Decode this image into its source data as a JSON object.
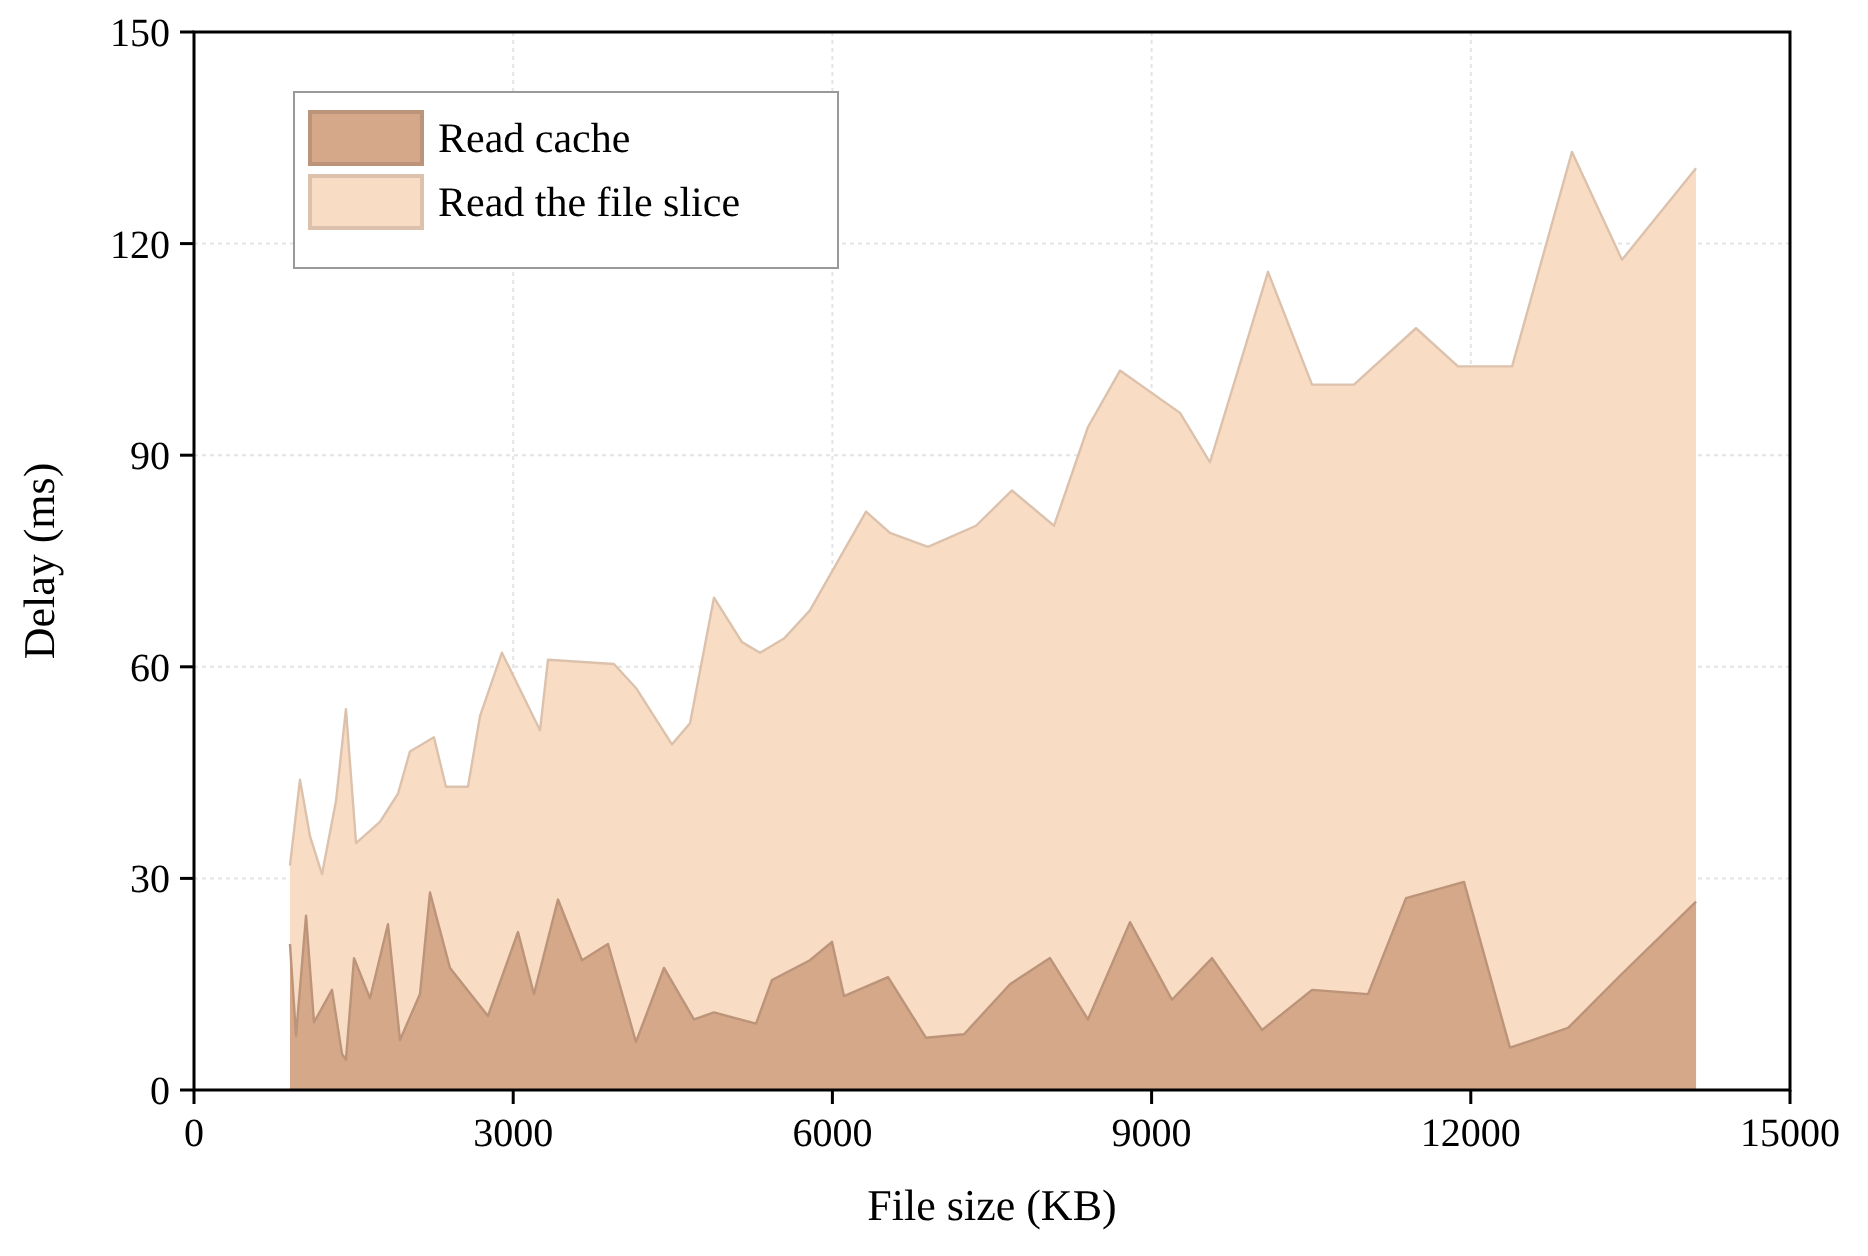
{
  "chart_data": {
    "type": "area",
    "xlabel": "File size (KB)",
    "ylabel": "Delay (ms)",
    "xlim": [
      0,
      15000
    ],
    "xticks": [
      0,
      3000,
      6000,
      9000,
      12000,
      15000
    ],
    "ylim": [
      0,
      150
    ],
    "yticks": [
      0,
      30,
      60,
      90,
      120,
      150
    ],
    "grid": true,
    "legend": "top left",
    "series": [
      {
        "name": "Read the file slice",
        "color": "#f9dcc4",
        "x": [
          902,
          996,
          1090,
          1203,
          1335,
          1428,
          1523,
          1748,
          1917,
          2030,
          2255,
          2368,
          2575,
          2688,
          2894,
          3252,
          3327,
          3947,
          4154,
          4492,
          4662,
          4887,
          5150,
          5320,
          5545,
          5789,
          6316,
          6541,
          6898,
          7350,
          7688,
          8083,
          8402,
          8703,
          9267,
          9549,
          10094,
          10508,
          10902,
          11485,
          11880,
          12388,
          12951,
          13421,
          14117
        ],
        "values": [
          31.8,
          44,
          36,
          30.6,
          41,
          54,
          35,
          38,
          42,
          48,
          50,
          43,
          43,
          53,
          62,
          51,
          61,
          60.4,
          57,
          49,
          52,
          69.8,
          63.5,
          62,
          64,
          68,
          82,
          79,
          77,
          80,
          85,
          80,
          94,
          102,
          96,
          89,
          116,
          100,
          100,
          108,
          102.6,
          102.6,
          133,
          117.7,
          130.7
        ]
      },
      {
        "name": "Read cache",
        "color": "#d4a889",
        "x": [
          902,
          959,
          1053,
          1128,
          1297,
          1391,
          1428,
          1504,
          1654,
          1823,
          1936,
          2124,
          2218,
          2406,
          2763,
          3045,
          3195,
          3421,
          3647,
          3891,
          4154,
          4417,
          4699,
          4887,
          5282,
          5432,
          5789,
          5996,
          6109,
          6523,
          6880,
          7237,
          7669,
          8045,
          8402,
          8797,
          9192,
          9568,
          10038,
          10508,
          11034,
          11391,
          11936,
          12368,
          12914,
          13402,
          14117
        ],
        "values": [
          20.7,
          7.7,
          24.7,
          9.6,
          14.2,
          5.1,
          4.3,
          18.7,
          13,
          23.5,
          7.1,
          13.6,
          28,
          17.3,
          10.5,
          22.4,
          13.6,
          27,
          18.4,
          20.7,
          6.8,
          17.3,
          10,
          11,
          9.4,
          15.6,
          18.4,
          21,
          13.3,
          16,
          7.4,
          7.9,
          15,
          18.7,
          10,
          23.8,
          12.8,
          18.7,
          8.5,
          14.2,
          13.6,
          27.2,
          29.5,
          6,
          8.8,
          16.2,
          26.7
        ]
      }
    ]
  }
}
